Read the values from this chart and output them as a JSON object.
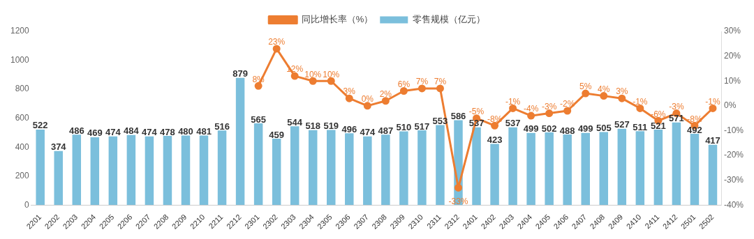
{
  "chart_data": {
    "type": "bar",
    "categories": [
      "2201",
      "2202",
      "2203",
      "2204",
      "2205",
      "2206",
      "2207",
      "2208",
      "2209",
      "2210",
      "2211",
      "2212",
      "2301",
      "2302",
      "2303",
      "2304",
      "2305",
      "2306",
      "2307",
      "2308",
      "2309",
      "2310",
      "2311",
      "2312",
      "2401",
      "2402",
      "2403",
      "2404",
      "2405",
      "2406",
      "2407",
      "2408",
      "2409",
      "2410",
      "2411",
      "2412",
      "2501",
      "2502"
    ],
    "series": [
      {
        "name": "零售规模（亿元）",
        "type": "bar",
        "color": "#7bbfdc",
        "values": [
          522,
          374,
          486,
          469,
          474,
          484,
          474,
          478,
          480,
          481,
          516,
          879,
          565,
          459,
          544,
          518,
          519,
          496,
          474,
          487,
          510,
          517,
          553,
          586,
          537,
          423,
          537,
          499,
          502,
          488,
          499,
          505,
          527,
          511,
          521,
          571,
          492,
          417
        ]
      },
      {
        "name": "同比增长率（%）",
        "type": "line",
        "axis": "y2",
        "color": "#ed7d31",
        "marker": "circle",
        "values": [
          null,
          null,
          null,
          null,
          null,
          null,
          null,
          null,
          null,
          null,
          null,
          null,
          8,
          23,
          12,
          10,
          10,
          3,
          0,
          2,
          6,
          7,
          7,
          -33,
          -5,
          -8,
          -1,
          -4,
          -3,
          -2,
          5,
          4,
          3,
          -1,
          -6,
          -3,
          -8,
          -1
        ],
        "value_labels": [
          null,
          null,
          null,
          null,
          null,
          null,
          null,
          null,
          null,
          null,
          null,
          null,
          "8%",
          "23%",
          "12%",
          "10%",
          "10%",
          "3%",
          "0%",
          "2%",
          "6%",
          "7%",
          "7%",
          "-33%",
          "-5%",
          "-8%",
          "-1%",
          "-4%",
          "-3%",
          "-2%",
          "5%",
          "4%",
          "3%",
          "-1%",
          "-6%",
          "-3%",
          "-8%",
          "-1%"
        ]
      }
    ],
    "data_labels": true,
    "ylim": [
      0,
      1200
    ],
    "yticks": [
      0,
      200,
      400,
      600,
      800,
      1000,
      1200
    ],
    "y2lim": [
      -40,
      30
    ],
    "y2ticks": [
      {
        "value": -40,
        "label": "-40%"
      },
      {
        "value": -30,
        "label": "-30%"
      },
      {
        "value": -20,
        "label": "-20%"
      },
      {
        "value": -10,
        "label": "-10%"
      },
      {
        "value": 0,
        "label": "0%"
      },
      {
        "value": 10,
        "label": "10%"
      },
      {
        "value": 20,
        "label": "20%"
      },
      {
        "value": 30,
        "label": "30%"
      }
    ],
    "grid": false,
    "legend": "top"
  }
}
